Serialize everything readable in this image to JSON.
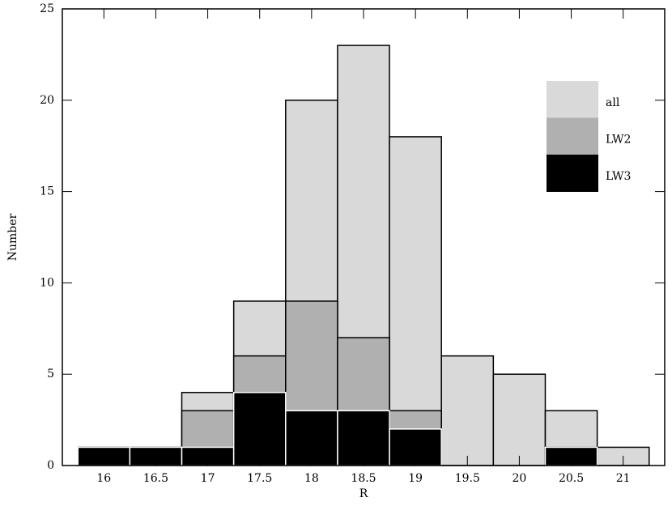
{
  "chart_data": {
    "type": "histogram",
    "x_label": "R",
    "y_label": "Number",
    "bins": [
      15.75,
      16.25,
      16.75,
      17.25,
      17.75,
      18.25,
      18.75,
      19.25,
      19.75,
      20.25,
      20.75,
      21.25
    ],
    "series": [
      {
        "name": "all",
        "color": "#d9d9d9",
        "values": [
          1,
          1,
          4,
          9,
          20,
          23,
          18,
          6,
          5,
          3,
          1
        ]
      },
      {
        "name": "LW2",
        "color": "#b0b0b0",
        "values": [
          1,
          1,
          3,
          6,
          9,
          7,
          3,
          0,
          0,
          1,
          0
        ]
      },
      {
        "name": "LW3",
        "color": "#000000",
        "values": [
          1,
          1,
          1,
          4,
          3,
          3,
          2,
          0,
          0,
          1,
          0
        ]
      }
    ],
    "xlim": [
      15.6,
      21.4
    ],
    "ylim": [
      0,
      25
    ],
    "xticks": [
      16,
      16.5,
      17,
      17.5,
      18,
      18.5,
      19,
      19.5,
      20,
      20.5,
      21
    ],
    "yticks": [
      0,
      5,
      10,
      15,
      20,
      25
    ],
    "legend": "upper right"
  }
}
